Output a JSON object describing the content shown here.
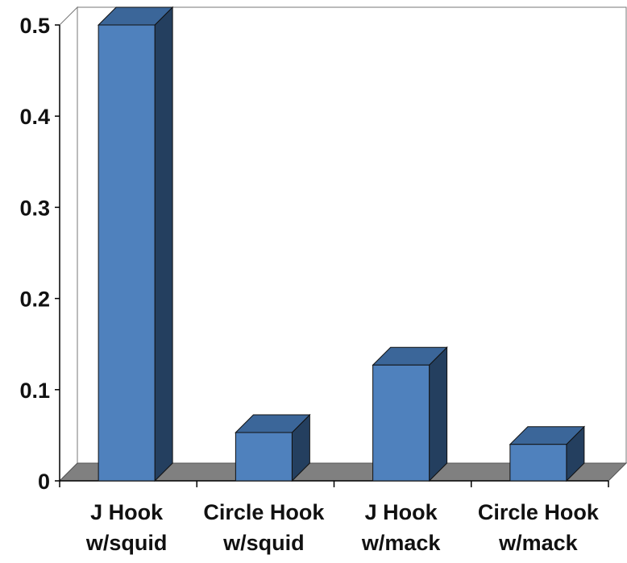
{
  "chart_data": {
    "type": "bar",
    "title": "",
    "xlabel": "",
    "ylabel": "",
    "categories": [
      [
        "J Hook",
        "w/squid"
      ],
      [
        "Circle Hook",
        "w/squid"
      ],
      [
        "J Hook",
        "w/mack"
      ],
      [
        "Circle Hook",
        "w/mack"
      ]
    ],
    "values": [
      0.5,
      0.053,
      0.127,
      0.04
    ],
    "ylim": [
      0,
      0.5
    ],
    "yticks": [
      "0",
      "0.1",
      "0.2",
      "0.3",
      "0.4",
      "0.5"
    ],
    "grid": false,
    "legend": "none",
    "style": "3d-column",
    "colors": {
      "bar_front": "#4f81bd",
      "bar_side": "#243f5f",
      "bar_top": "#3b6699",
      "floor": "#808080",
      "axis": "#000000"
    }
  }
}
